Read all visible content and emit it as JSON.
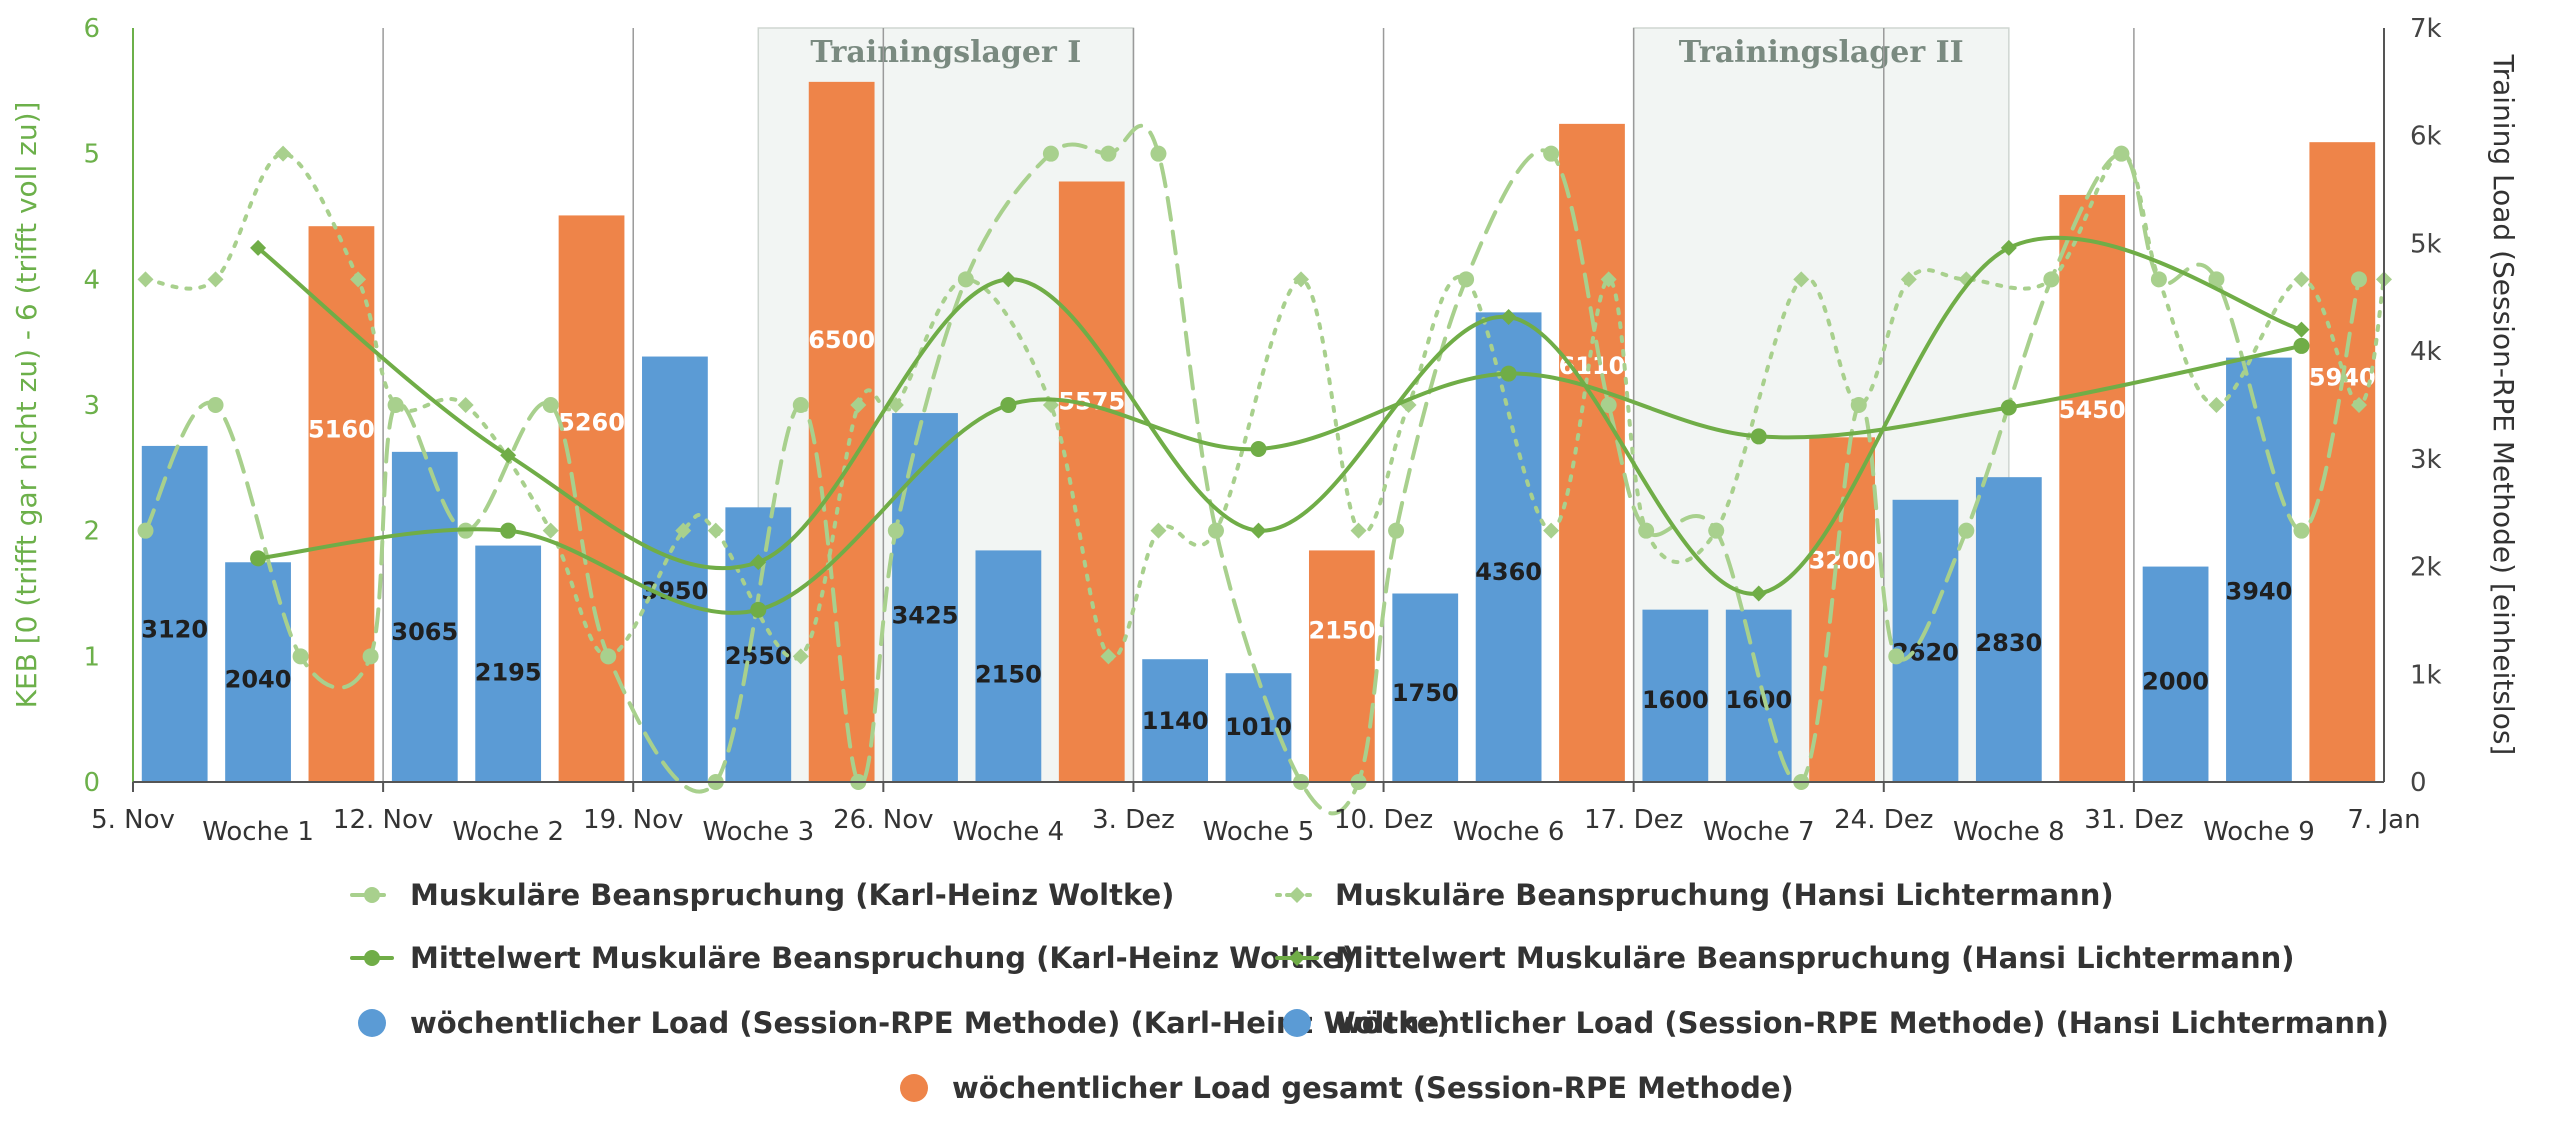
{
  "chart_data": {
    "type": "bar",
    "title": "",
    "y_left_label": "KEB [0 (trifft gar nicht zu) - 6 (trifft voll zu)]",
    "y_right_label": "Training Load (Session-RPE Methode) [einheitslos]",
    "y_left_ticks": [
      "0",
      "1",
      "2",
      "3",
      "4",
      "5",
      "6"
    ],
    "y_right_ticks": [
      "0",
      "1k",
      "2k",
      "3k",
      "4k",
      "5k",
      "6k",
      "7k"
    ],
    "ylim_left": [
      0,
      6
    ],
    "ylim_right": [
      0,
      7000
    ],
    "date_labels": [
      "5. Nov",
      "12. Nov",
      "19. Nov",
      "26. Nov",
      "3. Dez",
      "10. Dez",
      "17. Dez",
      "24. Dez",
      "31. Dez",
      "7. Jan"
    ],
    "week_labels": [
      "Woche 1",
      "Woche 2",
      "Woche 3",
      "Woche 4",
      "Woche 5",
      "Woche 6",
      "Woche 7",
      "Woche 8",
      "Woche 9"
    ],
    "camps": [
      {
        "label": "Trainingslager I",
        "from": 2.5,
        "to": 4.0
      },
      {
        "label": "Trainingslager II",
        "from": 6.0,
        "to": 7.5
      }
    ],
    "bars": {
      "karl": {
        "name": "wöchentlicher Load (Session-RPE Methode) (Karl-Heinz Woltke)",
        "color": "#5b9bd5",
        "values": [
          3120,
          3065,
          3950,
          3425,
          1140,
          1750,
          1600,
          2620,
          2000
        ]
      },
      "hansi": {
        "name": "wöchentlicher Load (Session-RPE Methode) (Hansi Lichtermann)",
        "color": "#5b9bd5",
        "values": [
          2040,
          2195,
          2550,
          2150,
          1010,
          4360,
          1600,
          2830,
          3940
        ]
      },
      "total": {
        "name": "wöchentlicher Load gesamt (Session-RPE Methode)",
        "color": "#ee8449",
        "values": [
          5160,
          5260,
          6500,
          5575,
          2150,
          6110,
          3200,
          5450,
          5940
        ]
      }
    },
    "lines": {
      "karl_daily": {
        "name": "Muskuläre Beanspruchung (Karl-Heinz Woltke)",
        "color": "#a8d08d",
        "points": [
          [
            0.05,
            2
          ],
          [
            0.33,
            3
          ],
          [
            0.67,
            1
          ],
          [
            0.95,
            1
          ],
          [
            1.05,
            3
          ],
          [
            1.33,
            2
          ],
          [
            1.67,
            3
          ],
          [
            1.9,
            1
          ],
          [
            2.33,
            0
          ],
          [
            2.67,
            3
          ],
          [
            2.9,
            0
          ],
          [
            3.05,
            2
          ],
          [
            3.33,
            4
          ],
          [
            3.67,
            5
          ],
          [
            3.9,
            5
          ],
          [
            4.1,
            5
          ],
          [
            4.33,
            2
          ],
          [
            4.67,
            0
          ],
          [
            4.9,
            0
          ],
          [
            5.05,
            2
          ],
          [
            5.33,
            4
          ],
          [
            5.67,
            5
          ],
          [
            5.9,
            3
          ],
          [
            6.05,
            2
          ],
          [
            6.33,
            2
          ],
          [
            6.67,
            0
          ],
          [
            6.9,
            3
          ],
          [
            7.05,
            1
          ],
          [
            7.33,
            2
          ],
          [
            7.67,
            4
          ],
          [
            7.95,
            5
          ],
          [
            8.1,
            4
          ],
          [
            8.33,
            4
          ],
          [
            8.67,
            2
          ],
          [
            8.9,
            4
          ]
        ]
      },
      "hansi_daily": {
        "name": "Muskuläre Beanspruchung (Hansi Lichtermann)",
        "color": "#a8d08d",
        "points": [
          [
            0.05,
            4
          ],
          [
            0.33,
            4
          ],
          [
            0.6,
            5
          ],
          [
            0.9,
            4
          ],
          [
            1.05,
            3
          ],
          [
            1.33,
            3
          ],
          [
            1.67,
            2
          ],
          [
            1.9,
            1
          ],
          [
            2.2,
            2
          ],
          [
            2.33,
            2
          ],
          [
            2.67,
            1
          ],
          [
            2.9,
            3
          ],
          [
            3.05,
            3
          ],
          [
            3.33,
            4
          ],
          [
            3.67,
            3
          ],
          [
            3.9,
            1
          ],
          [
            4.1,
            2
          ],
          [
            4.33,
            2
          ],
          [
            4.67,
            4
          ],
          [
            4.9,
            2
          ],
          [
            5.1,
            3
          ],
          [
            5.33,
            4
          ],
          [
            5.67,
            2
          ],
          [
            5.9,
            4
          ],
          [
            6.05,
            2
          ],
          [
            6.33,
            2
          ],
          [
            6.67,
            4
          ],
          [
            6.9,
            3
          ],
          [
            7.1,
            4
          ],
          [
            7.33,
            4
          ],
          [
            7.67,
            4
          ],
          [
            7.95,
            5
          ],
          [
            8.1,
            4
          ],
          [
            8.33,
            3
          ],
          [
            8.67,
            4
          ],
          [
            8.9,
            3
          ],
          [
            9.0,
            4
          ]
        ]
      },
      "karl_mean": {
        "name": "Mittelwert Muskuläre Beanspruchung (Karl-Heinz Woltke)",
        "color": "#70ad47",
        "points": [
          [
            0.5,
            1.78
          ],
          [
            1.5,
            2.0
          ],
          [
            2.5,
            1.37
          ],
          [
            3.5,
            3.0
          ],
          [
            4.5,
            2.65
          ],
          [
            5.5,
            3.25
          ],
          [
            6.5,
            2.75
          ],
          [
            7.5,
            2.98
          ],
          [
            8.67,
            3.47
          ]
        ]
      },
      "hansi_mean": {
        "name": "Mittelwert Muskuläre Beanspruchung (Hansi Lichtermann)",
        "color": "#70ad47",
        "points": [
          [
            0.5,
            4.25
          ],
          [
            1.5,
            2.6
          ],
          [
            2.5,
            1.75
          ],
          [
            3.5,
            4.0
          ],
          [
            4.5,
            2.0
          ],
          [
            5.5,
            3.7
          ],
          [
            6.5,
            1.5
          ],
          [
            7.5,
            4.25
          ],
          [
            8.67,
            3.6
          ]
        ]
      }
    },
    "legend": {
      "placement": "bottom",
      "entries": [
        {
          "label": "Muskuläre Beanspruchung (Karl-Heinz Woltke)",
          "color": "#a8d08d",
          "marker": "circle",
          "style": "dashed"
        },
        {
          "label": "Muskuläre Beanspruchung (Hansi Lichtermann)",
          "color": "#a8d08d",
          "marker": "diamond",
          "style": "dotted"
        },
        {
          "label": "Mittelwert Muskuläre Beanspruchung (Karl-Heinz Woltke)",
          "color": "#70ad47",
          "marker": "circle",
          "style": "solid"
        },
        {
          "label": "Mittelwert Muskuläre Beanspruchung (Hansi Lichtermann)",
          "color": "#70ad47",
          "marker": "diamond",
          "style": "solid"
        },
        {
          "label": "wöchentlicher Load (Session-RPE Methode) (Karl-Heinz Woltke)",
          "color": "#5b9bd5",
          "marker": "dot",
          "style": "none"
        },
        {
          "label": "wöchentlicher Load (Session-RPE Methode) (Hansi Lichtermann)",
          "color": "#5b9bd5",
          "marker": "dot",
          "style": "none"
        },
        {
          "label": "wöchentlicher Load gesamt (Session-RPE Methode)",
          "color": "#ee8449",
          "marker": "dot",
          "style": "none"
        }
      ]
    }
  }
}
